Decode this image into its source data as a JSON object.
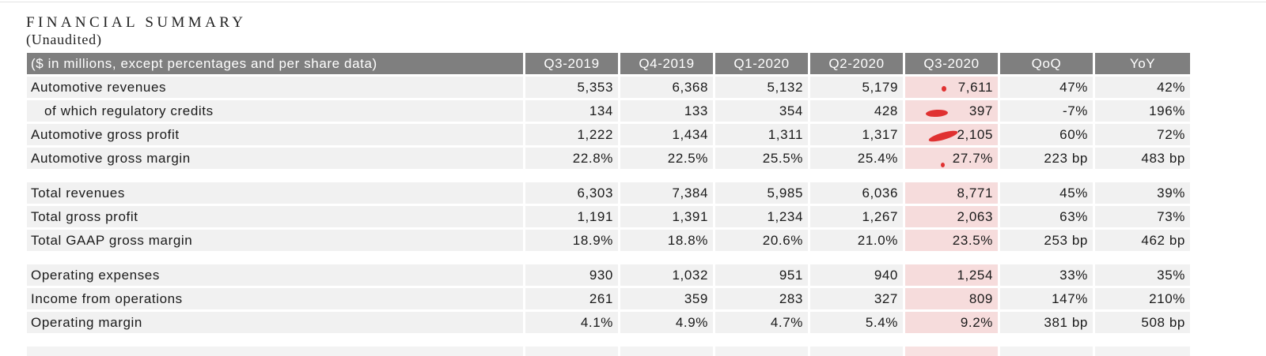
{
  "title": "FINANCIAL SUMMARY",
  "subtitle": "(Unaudited)",
  "table": {
    "headers": [
      "($ in millions, except percentages and per share data)",
      "Q3-2019",
      "Q4-2019",
      "Q1-2020",
      "Q2-2020",
      "Q3-2020",
      "QoQ",
      "YoY"
    ],
    "highlight_column": "Q3-2020",
    "highlight_color": "#f6dcdc",
    "header_color": "#7f7f7f",
    "annotation_color": "#e03131",
    "groups": [
      {
        "rows": [
          {
            "label": "Automotive revenues",
            "values": [
              "5,353",
              "6,368",
              "5,132",
              "5,179",
              "7,611",
              "47%",
              "42%"
            ]
          },
          {
            "label": "of which regulatory credits",
            "indent": true,
            "values": [
              "134",
              "133",
              "354",
              "428",
              "397",
              "-7%",
              "196%"
            ]
          },
          {
            "label": "Automotive gross profit",
            "values": [
              "1,222",
              "1,434",
              "1,311",
              "1,317",
              "2,105",
              "60%",
              "72%"
            ]
          },
          {
            "label": "Automotive gross margin",
            "values": [
              "22.8%",
              "22.5%",
              "25.5%",
              "25.4%",
              "27.7%",
              "223 bp",
              "483 bp"
            ]
          }
        ]
      },
      {
        "rows": [
          {
            "label": "Total revenues",
            "values": [
              "6,303",
              "7,384",
              "5,985",
              "6,036",
              "8,771",
              "45%",
              "39%"
            ]
          },
          {
            "label": "Total gross profit",
            "values": [
              "1,191",
              "1,391",
              "1,234",
              "1,267",
              "2,063",
              "63%",
              "73%"
            ]
          },
          {
            "label": "Total GAAP gross margin",
            "values": [
              "18.9%",
              "18.8%",
              "20.6%",
              "21.0%",
              "23.5%",
              "253 bp",
              "462 bp"
            ]
          }
        ]
      },
      {
        "rows": [
          {
            "label": "Operating expenses",
            "values": [
              "930",
              "1,032",
              "951",
              "940",
              "1,254",
              "33%",
              "35%"
            ]
          },
          {
            "label": "Income from operations",
            "values": [
              "261",
              "359",
              "283",
              "327",
              "809",
              "147%",
              "210%"
            ]
          },
          {
            "label": "Operating margin",
            "values": [
              "4.1%",
              "4.9%",
              "4.7%",
              "5.4%",
              "9.2%",
              "381 bp",
              "508 bp"
            ]
          }
        ]
      }
    ]
  }
}
